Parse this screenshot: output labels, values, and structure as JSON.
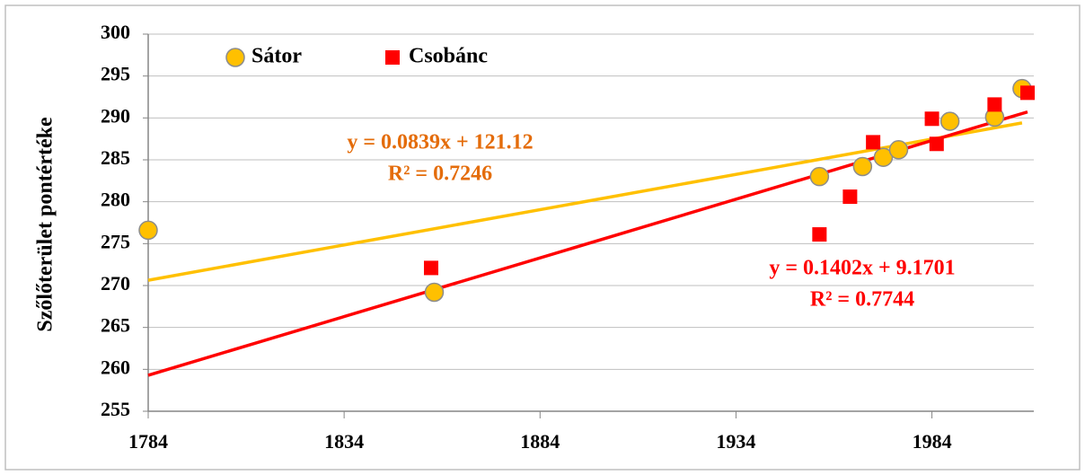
{
  "chart_data": {
    "type": "scatter",
    "y_label": "Szőlőterület pontértéke",
    "xlim": [
      1784,
      2010
    ],
    "xticks": [
      1784,
      1834,
      1884,
      1934,
      1984
    ],
    "ylim": [
      255,
      300
    ],
    "yticks": [
      255,
      260,
      265,
      270,
      275,
      280,
      285,
      290,
      295,
      300
    ],
    "grid": true,
    "legend": "top-left",
    "series": [
      {
        "name": "Sátor",
        "marker": "circle",
        "color": "#ffc000",
        "label_color": "#e46c0a",
        "x": [
          1784,
          1857,
          1955.3,
          1966.3,
          1971.6,
          1975.5,
          1988.6,
          2000,
          2007
        ],
        "values": [
          276.6,
          269.2,
          283.0,
          284.2,
          285.3,
          286.2,
          289.6,
          290.1,
          293.5
        ],
        "equation": "y = 0.0839x + 121.12",
        "r2": "R² = 0.7246"
      },
      {
        "name": "Csobánc",
        "marker": "square",
        "color": "#ff0000",
        "label_color": "#ff0000",
        "x": [
          1856.2,
          1955.3,
          1963.1,
          1969,
          1984,
          1985.2,
          2000,
          2008.4
        ],
        "values": [
          272.1,
          276.1,
          280.6,
          287.1,
          289.9,
          286.9,
          291.6,
          293.0
        ],
        "equation": "y = 0.1402x + 9.1701",
        "r2": "R² = 0.7744"
      }
    ]
  }
}
